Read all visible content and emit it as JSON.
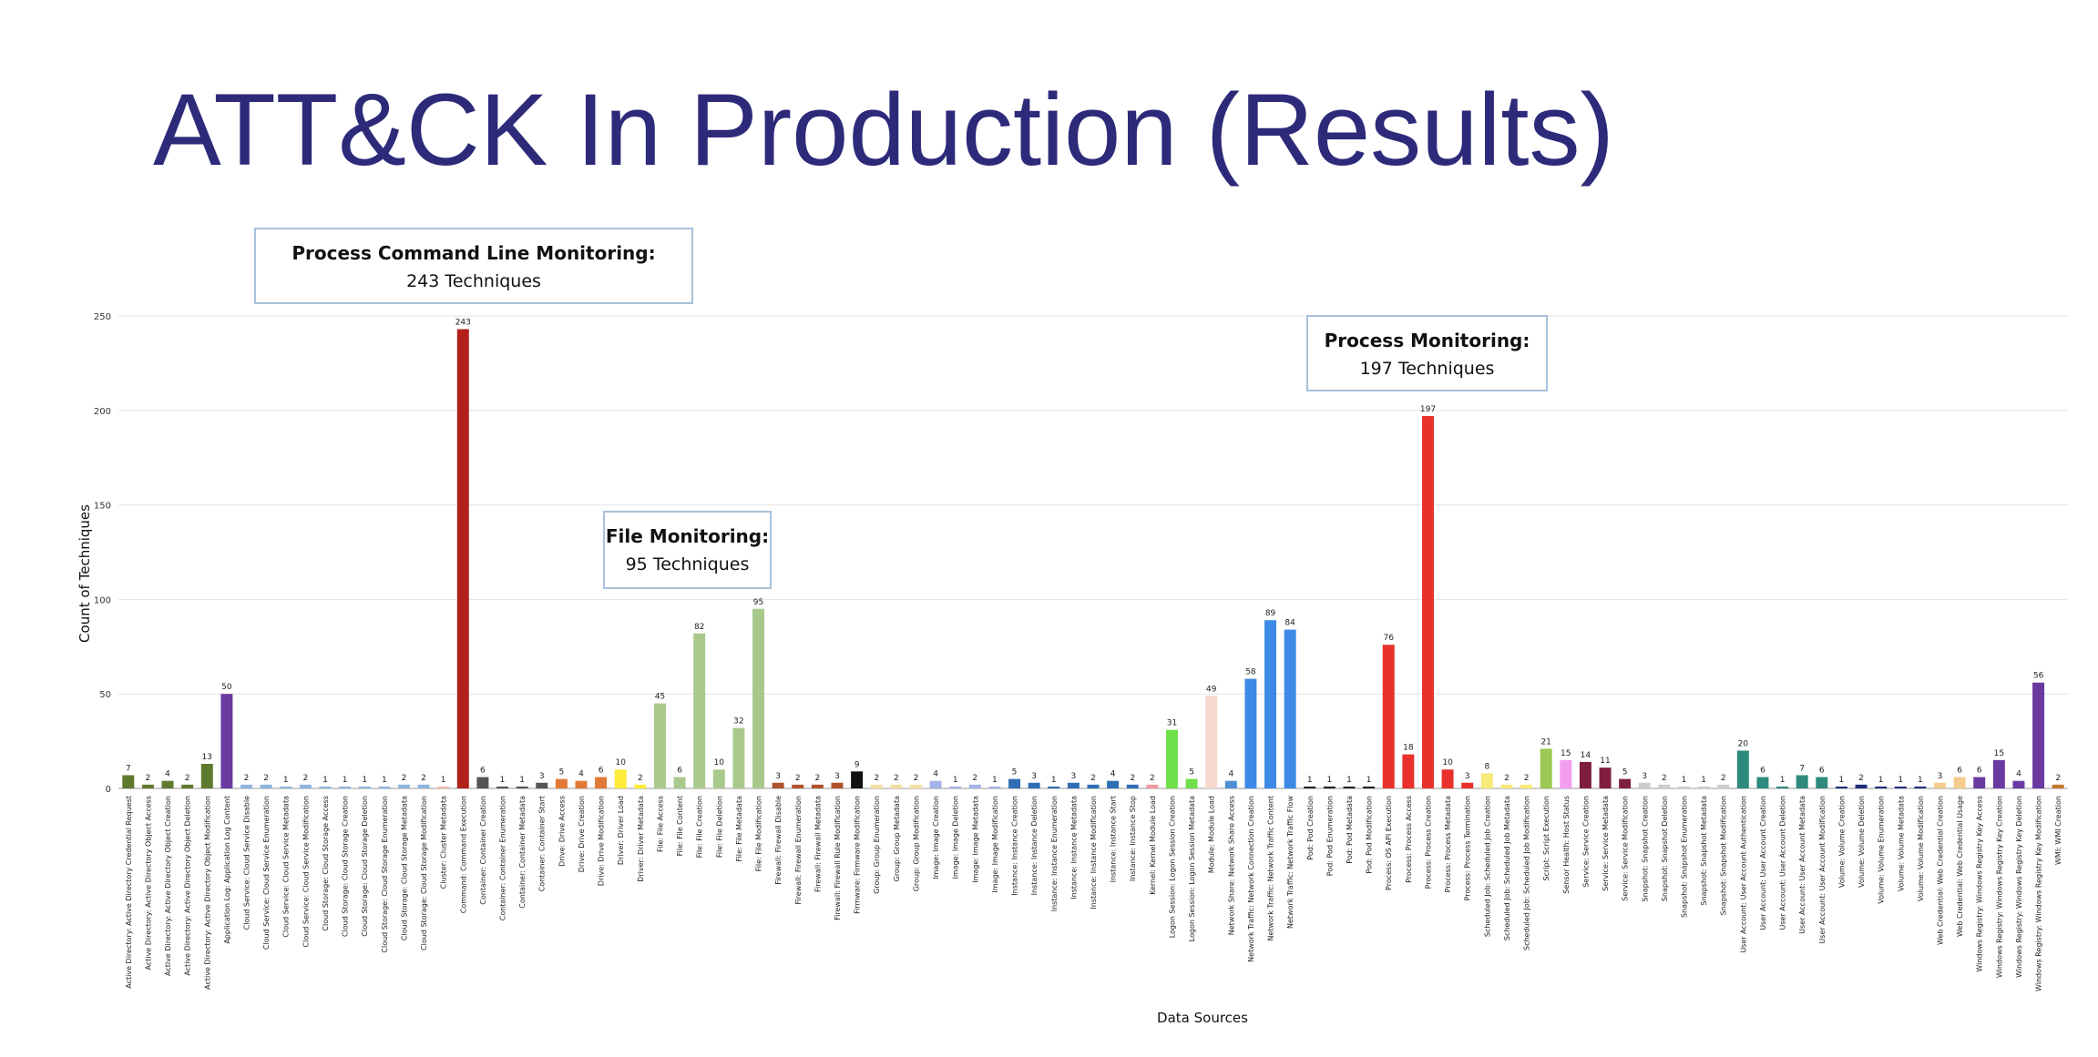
{
  "slide": {
    "title": "ATT&CK In Production (Results)"
  },
  "callouts": [
    {
      "id": "pcl",
      "title": "Process Command Line Monitoring:",
      "subtitle": "243 Techniques"
    },
    {
      "id": "file",
      "title": "File Monitoring:",
      "subtitle": "95 Techniques"
    },
    {
      "id": "proc",
      "title": "Process Monitoring:",
      "subtitle": "197 Techniques"
    }
  ],
  "chart_data": {
    "type": "bar",
    "title": "",
    "xlabel": "Data Sources",
    "ylabel": "Count of Techniques",
    "ylim": [
      0,
      250
    ],
    "yticks": [
      0,
      50,
      100,
      150,
      200,
      250
    ],
    "grid": true,
    "legend": "none",
    "categories": [
      "Active Directory: Active Directory Credential Request",
      "Active Directory: Active Directory Object Access",
      "Active Directory: Active Directory Object Creation",
      "Active Directory: Active Directory Object Deletion",
      "Active Directory: Active Directory Object Modification",
      "Application Log: Application Log Content",
      "Cloud Service: Cloud Service Disable",
      "Cloud Service: Cloud Service Enumeration",
      "Cloud Service: Cloud Service Metadata",
      "Cloud Service: Cloud Service Modification",
      "Cloud Storage: Cloud Storage Access",
      "Cloud Storage: Cloud Storage Creation",
      "Cloud Storage: Cloud Storage Deletion",
      "Cloud Storage: Cloud Storage Enumeration",
      "Cloud Storage: Cloud Storage Metadata",
      "Cloud Storage: Cloud Storage Modification",
      "Cluster: Cluster Metadata",
      "Command: Command Execution",
      "Container: Container Creation",
      "Container: Container Enumeration",
      "Container: Container Metadata",
      "Container: Container Start",
      "Drive: Drive Access",
      "Drive: Drive Creation",
      "Drive: Drive Modification",
      "Driver: Driver Load",
      "Driver: Driver Metadata",
      "File: File Access",
      "File: File Content",
      "File: File Creation",
      "File: File Deletion",
      "File: File Metadata",
      "File: File Modification",
      "Firewall: Firewall Disable",
      "Firewall: Firewall Enumeration",
      "Firewall: Firewall Metadata",
      "Firewall: Firewall Rule Modification",
      "Firmware: Firmware Modification",
      "Group: Group Enumeration",
      "Group: Group Metadata",
      "Group: Group Modification",
      "Image: Image Creation",
      "Image: Image Deletion",
      "Image: Image Metadata",
      "Image: Image Modification",
      "Instance: Instance Creation",
      "Instance: Instance Deletion",
      "Instance: Instance Enumeration",
      "Instance: Instance Metadata",
      "Instance: Instance Modification",
      "Instance: Instance Start",
      "Instance: Instance Stop",
      "Kernel: Kernel Module Load",
      "Logon Session: Logon Session Creation",
      "Logon Session: Logon Session Metadata",
      "Module: Module Load",
      "Network Share: Network Share Access",
      "Network Traffic: Network Connection Creation",
      "Network Traffic: Network Traffic Content",
      "Network Traffic: Network Traffic Flow",
      "Pod: Pod Creation",
      "Pod: Pod Enumeration",
      "Pod: Pod Metadata",
      "Pod: Pod Modification",
      "Process: OS API Execution",
      "Process: Process Access",
      "Process: Process Creation",
      "Process: Process Metadata",
      "Process: Process Termination",
      "Scheduled Job: Scheduled Job Creation",
      "Scheduled Job: Scheduled Job Metadata",
      "Scheduled Job: Scheduled Job Modification",
      "Script: Script Execution",
      "Sensor Health: Host Status",
      "Service: Service Creation",
      "Service: Service Metadata",
      "Service: Service Modification",
      "Snapshot: Snapshot Creation",
      "Snapshot: Snapshot Deletion",
      "Snapshot: Snapshot Enumeration",
      "Snapshot: Snapshot Metadata",
      "Snapshot: Snapshot Modification",
      "User Account: User Account Authentication",
      "User Account: User Account Creation",
      "User Account: User Account Deletion",
      "User Account: User Account Metadata",
      "User Account: User Account Modification",
      "Volume: Volume Creation",
      "Volume: Volume Deletion",
      "Volume: Volume Enumeration",
      "Volume: Volume Metadata",
      "Volume: Volume Modification",
      "Web Credential: Web Credential Creation",
      "Web Credential: Web Credential Usage",
      "Windows Registry: Windows Registry Key Access",
      "Windows Registry: Windows Registry Key Creation",
      "Windows Registry: Windows Registry Key Deletion",
      "Windows Registry: Windows Registry Key Modification",
      "WMI: WMI Creation"
    ],
    "values": [
      7,
      2,
      4,
      2,
      13,
      50,
      2,
      2,
      1,
      2,
      1,
      1,
      1,
      1,
      2,
      2,
      1,
      243,
      6,
      1,
      1,
      3,
      5,
      4,
      6,
      10,
      2,
      45,
      6,
      82,
      10,
      32,
      95,
      3,
      2,
      2,
      3,
      9,
      2,
      2,
      2,
      4,
      1,
      2,
      1,
      5,
      3,
      1,
      3,
      2,
      4,
      2,
      2,
      31,
      5,
      49,
      4,
      58,
      89,
      84,
      1,
      1,
      1,
      1,
      76,
      18,
      197,
      10,
      3,
      8,
      2,
      2,
      21,
      15,
      14,
      11,
      5,
      3,
      2,
      1,
      1,
      2,
      20,
      6,
      1,
      7,
      6,
      1,
      2,
      1,
      1,
      1,
      3,
      6,
      6,
      15,
      4,
      56,
      2
    ],
    "colors": [
      "#5e7a2f",
      "#5e7a2f",
      "#5e7a2f",
      "#5e7a2f",
      "#5e7a2f",
      "#6a3aa0",
      "#8fb4dd",
      "#8fb4dd",
      "#8fb4dd",
      "#8fb4dd",
      "#8fb4dd",
      "#8fb4dd",
      "#8fb4dd",
      "#8fb4dd",
      "#8fb4dd",
      "#8fb4dd",
      "#f2b8a6",
      "#b3201b",
      "#555555",
      "#555555",
      "#555555",
      "#555555",
      "#e07a36",
      "#e07a36",
      "#e07a36",
      "#ffeb3b",
      "#ffeb3b",
      "#a9c98c",
      "#a9c98c",
      "#a9c98c",
      "#a9c98c",
      "#a9c98c",
      "#a9c98c",
      "#b0522e",
      "#b0522e",
      "#b0522e",
      "#b0522e",
      "#111111",
      "#f2dfa2",
      "#f2dfa2",
      "#f2dfa2",
      "#a3b3e8",
      "#a3b3e8",
      "#a3b3e8",
      "#a3b3e8",
      "#2f6db5",
      "#2f6db5",
      "#2f6db5",
      "#2f6db5",
      "#2f6db5",
      "#2f6db5",
      "#2f6db5",
      "#ee9aa0",
      "#6fe04a",
      "#6fe04a",
      "#f8d9cf",
      "#4e8fd6",
      "#3d8ae6",
      "#3d8ae6",
      "#3d8ae6",
      "#222222",
      "#222222",
      "#222222",
      "#222222",
      "#e8312a",
      "#e8312a",
      "#e8312a",
      "#e8312a",
      "#e8312a",
      "#f7e97a",
      "#f7e97a",
      "#f7e97a",
      "#9bc954",
      "#f29df0",
      "#7f1e3c",
      "#7f1e3c",
      "#7f1e3c",
      "#cccccc",
      "#cccccc",
      "#cccccc",
      "#cccccc",
      "#cccccc",
      "#2e8a7d",
      "#2e8a7d",
      "#2e8a7d",
      "#2e8a7d",
      "#2e8a7d",
      "#1f2d7a",
      "#1f2d7a",
      "#1f2d7a",
      "#1f2d7a",
      "#1f2d7a",
      "#f5cb8e",
      "#f5cb8e",
      "#6a3aa0",
      "#6a3aa0",
      "#6a3aa0",
      "#6a3aa0",
      "#c2772e"
    ]
  }
}
